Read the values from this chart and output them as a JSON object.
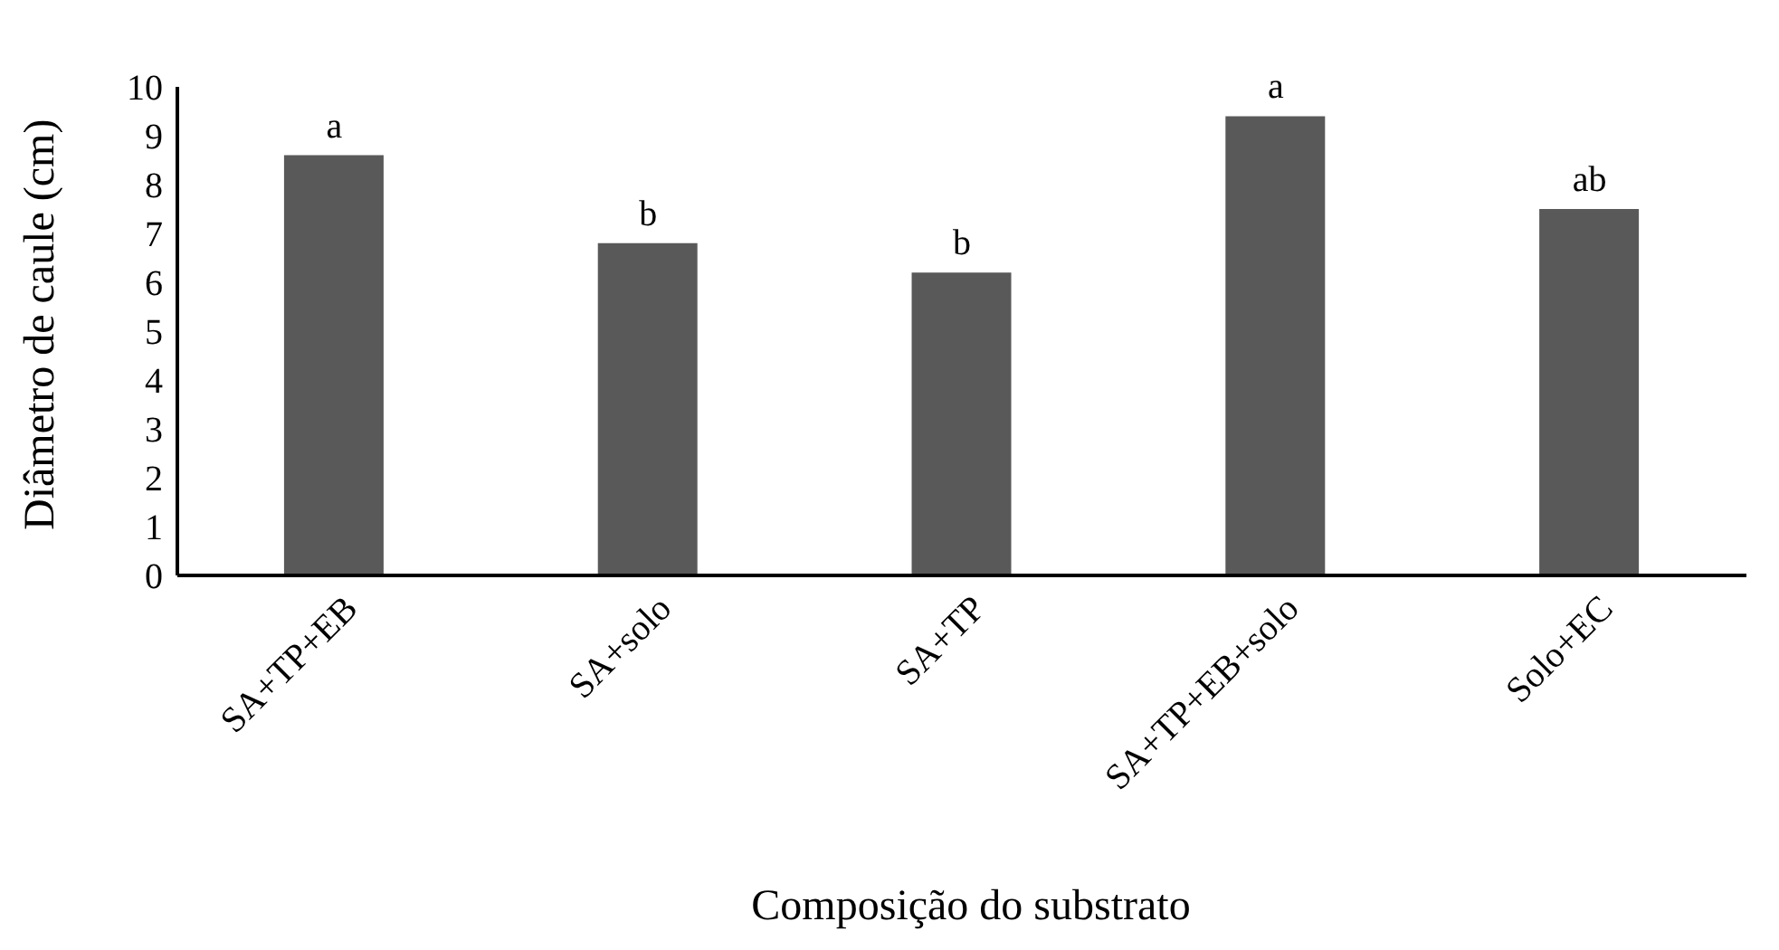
{
  "chart_data": {
    "type": "bar",
    "xlabel": "Composição do substrato",
    "ylabel": "Diâmetro de caule (cm)",
    "categories": [
      "SA+TP+EB",
      "SA+solo",
      "SA+TP",
      "SA+TP+EB+solo",
      "Solo+EC"
    ],
    "values": [
      8.6,
      6.8,
      6.2,
      9.4,
      7.5
    ],
    "color": "#595959",
    "ylim": [
      0,
      10
    ],
    "yticks": [
      0,
      1,
      2,
      3,
      4,
      5,
      6,
      7,
      8,
      9,
      10
    ],
    "grid": false,
    "legend": false,
    "annotations": [
      "a",
      "b",
      "b",
      "a",
      "ab"
    ]
  }
}
